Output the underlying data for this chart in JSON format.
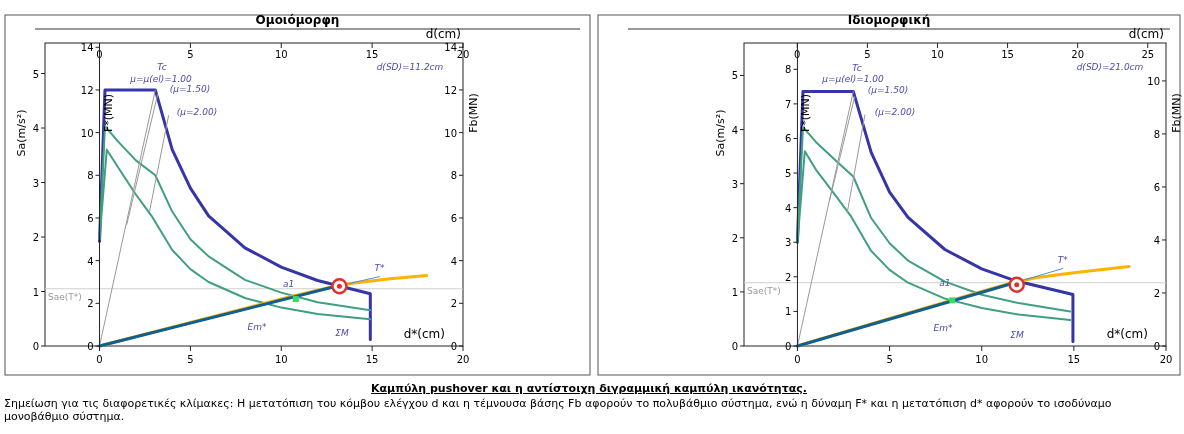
{
  "chart_data": [
    {
      "type": "line",
      "title": "Ομοιόμορφη",
      "xlabel": "d*(cm)",
      "x2label": "d(cm)",
      "ylabel": "F*(MN)",
      "y2label": "Fb(MN)",
      "y3label": "Sa(m/s²)",
      "xlim": [
        -3,
        20
      ],
      "xticks": [
        0,
        5,
        10,
        15,
        20
      ],
      "x2lim": [
        -3,
        20
      ],
      "x2ticks": [
        0,
        5,
        10,
        15,
        20
      ],
      "ylim": [
        0,
        14.2
      ],
      "yticks": [
        0,
        2,
        4,
        6,
        8,
        10,
        12,
        14
      ],
      "y2lim": [
        0,
        14.2
      ],
      "y2ticks": [
        0,
        2,
        4,
        6,
        8,
        10,
        12,
        14
      ],
      "y3lim": [
        0,
        5.56
      ],
      "y3ticks": [
        0,
        1,
        2,
        3,
        4,
        5
      ],
      "series": [
        {
          "color": "#3535a8",
          "x": [
            0,
            0.3,
            3.07,
            4,
            5,
            6,
            8,
            10,
            12,
            14.9,
            14.9
          ],
          "values": [
            4.9,
            12,
            12,
            9.2,
            7.4,
            6.1,
            4.6,
            3.7,
            3.07,
            2.45,
            0.3
          ]
        },
        {
          "color": "#3f9f80",
          "x": [
            0,
            0.3,
            1,
            2,
            3.07,
            4,
            5,
            6,
            8,
            10,
            12,
            14.9
          ],
          "values": [
            5,
            10.3,
            9.6,
            8.7,
            8,
            6.3,
            5,
            4.2,
            3.1,
            2.5,
            2.05,
            1.68
          ]
        },
        {
          "color": "#3f9f80",
          "x": [
            0,
            0.4,
            1,
            2,
            2.86,
            4,
            5,
            6,
            8,
            10,
            12,
            14.9
          ],
          "values": [
            5,
            9.2,
            8.4,
            7.1,
            6.1,
            4.5,
            3.6,
            3,
            2.25,
            1.8,
            1.5,
            1.25
          ]
        },
        {
          "color": "#ffb300",
          "x": [
            0,
            5,
            10,
            12.8,
            14,
            16,
            18
          ],
          "values": [
            0,
            1.1,
            2.2,
            2.78,
            2.95,
            3.15,
            3.3
          ]
        },
        {
          "color": "#0f5f8f",
          "x": [
            0,
            12.8
          ],
          "values": [
            0,
            2.75
          ]
        },
        {
          "color": "#4a90d9",
          "x": [
            12.8,
            15.4
          ],
          "values": [
            2.75,
            3.25
          ]
        },
        {
          "color": "#999999",
          "x": [
            0,
            3.07
          ],
          "values": [
            0,
            12
          ]
        },
        {
          "color": "#999999",
          "x": [
            1.5,
            3.2
          ],
          "values": [
            5.7,
            11.8
          ]
        },
        {
          "color": "#999999",
          "x": [
            2.75,
            3.8
          ],
          "values": [
            6.3,
            10.8
          ]
        },
        {
          "type": "scatter",
          "marker": "square",
          "color": "#33dd66",
          "x": [
            10.8
          ],
          "values": [
            2.2
          ]
        },
        {
          "type": "scatter",
          "marker": "circle",
          "color": "#e0302a",
          "x": [
            13.2
          ],
          "values": [
            2.8
          ]
        }
      ],
      "ref_lines": [
        {
          "axis": "y3",
          "value": 1.05,
          "label": "Sae(T*)",
          "color": "#d0d0d0"
        }
      ],
      "annotations": [
        "Καμπύλη pushover και η αντίστοιχη διγραμμική καμπύλη ικανότητας.",
        "Σημείωση για τις διαφορετικές κλίμακες: Η μετατόπιση του κόμβου ελέγχου d και η τέμνουσα βάσης Fb αφορούν το πολυβάθμιο σύστημα, ενώ η δύναμη F* και η μετατόπιση d* αφορούν το ισοδύναμο μονοβάθμιο σύστημα.",
        "μ=μ(el)=1.00",
        "Tc",
        "(μ=1.50)",
        "(μ=2.00)",
        "d(SD)=11.2cm",
        "ΣM",
        "Em*",
        {
          "text": "T*",
          "x": 15.4,
          "y": 3.25
        },
        {
          "text": "a1",
          "x": 10.4,
          "y": 2.5
        }
      ]
    },
    {
      "type": "line",
      "title": "Ιδιομορφική",
      "xlabel": "d*(cm)",
      "x2label": "d(cm)",
      "ylabel": "F*(MN)",
      "y2label": "Fb(MN)",
      "y3label": "Sa(m/s²)",
      "xlim": [
        -2.9,
        20
      ],
      "xticks": [
        0,
        5,
        10,
        15,
        20
      ],
      "x2lim": [
        -3.8,
        26.3
      ],
      "x2ticks": [
        0,
        5,
        10,
        15,
        20,
        25
      ],
      "ylim": [
        0,
        8.76
      ],
      "yticks": [
        0,
        1,
        2,
        3,
        4,
        5,
        6,
        7,
        8
      ],
      "y2lim": [
        0,
        11.43
      ],
      "y2ticks": [
        0,
        2,
        4,
        6,
        8,
        10
      ],
      "y3lim": [
        0,
        5.6
      ],
      "y3ticks": [
        0,
        1,
        2,
        3,
        4,
        5
      ],
      "series": [
        {
          "color": "#3535a8",
          "x": [
            0,
            0.3,
            3.03,
            4,
            5,
            6,
            8,
            10,
            11.8,
            14.95,
            14.95
          ],
          "values": [
            3,
            7.36,
            7.36,
            5.6,
            4.45,
            3.72,
            2.79,
            2.23,
            1.89,
            1.49,
            0.13
          ]
        },
        {
          "color": "#3f9f80",
          "x": [
            0,
            0.3,
            1,
            2,
            3.03,
            4,
            5,
            6,
            8,
            10,
            12,
            14.8
          ],
          "values": [
            3,
            6.33,
            5.9,
            5.4,
            4.9,
            3.7,
            2.97,
            2.47,
            1.86,
            1.48,
            1.24,
            1
          ]
        },
        {
          "color": "#3f9f80",
          "x": [
            0,
            0.4,
            1,
            2,
            2.92,
            4,
            5,
            6,
            8,
            10,
            12,
            14.8
          ],
          "values": [
            3,
            5.63,
            5.1,
            4.4,
            3.74,
            2.75,
            2.2,
            1.83,
            1.37,
            1.1,
            0.91,
            0.75
          ]
        },
        {
          "color": "#ffb300",
          "x": [
            0,
            5,
            10,
            11.6,
            13,
            15,
            18
          ],
          "values": [
            0,
            0.8,
            1.58,
            1.82,
            1.98,
            2.12,
            2.3
          ]
        },
        {
          "color": "#0f5f8f",
          "x": [
            0,
            11.6
          ],
          "values": [
            0,
            1.8
          ]
        },
        {
          "color": "#4a90d9",
          "x": [
            11.6,
            14.4
          ],
          "values": [
            1.8,
            2.24
          ]
        },
        {
          "color": "#999999",
          "x": [
            0,
            3.03
          ],
          "values": [
            0,
            7.36
          ]
        },
        {
          "color": "#999999",
          "x": [
            1.75,
            3.1
          ],
          "values": [
            4.22,
            7.2
          ]
        },
        {
          "color": "#999999",
          "x": [
            2.7,
            3.66
          ],
          "values": [
            3.85,
            6.68
          ]
        },
        {
          "type": "scatter",
          "marker": "square",
          "color": "#33dd66",
          "x": [
            8.4
          ],
          "values": [
            1.32
          ]
        },
        {
          "type": "scatter",
          "marker": "circle",
          "color": "#e0302a",
          "x": [
            11.9
          ],
          "values": [
            1.77
          ]
        }
      ],
      "ref_lines": [
        {
          "axis": "y3",
          "value": 1.17,
          "label": "Sae(T*)",
          "color": "#d0d0d0"
        }
      ],
      "annotations": [
        "μ=μ(el)=1.00",
        "Tc",
        "(μ=1.50)",
        "(μ=2.00)",
        "d(SD)=21.0cm",
        "ΣM",
        "Em*",
        {
          "text": "T*",
          "x": 14.4,
          "y": 2.24
        },
        {
          "text": "a1",
          "x": 8.0,
          "y": 1.55
        }
      ]
    }
  ]
}
